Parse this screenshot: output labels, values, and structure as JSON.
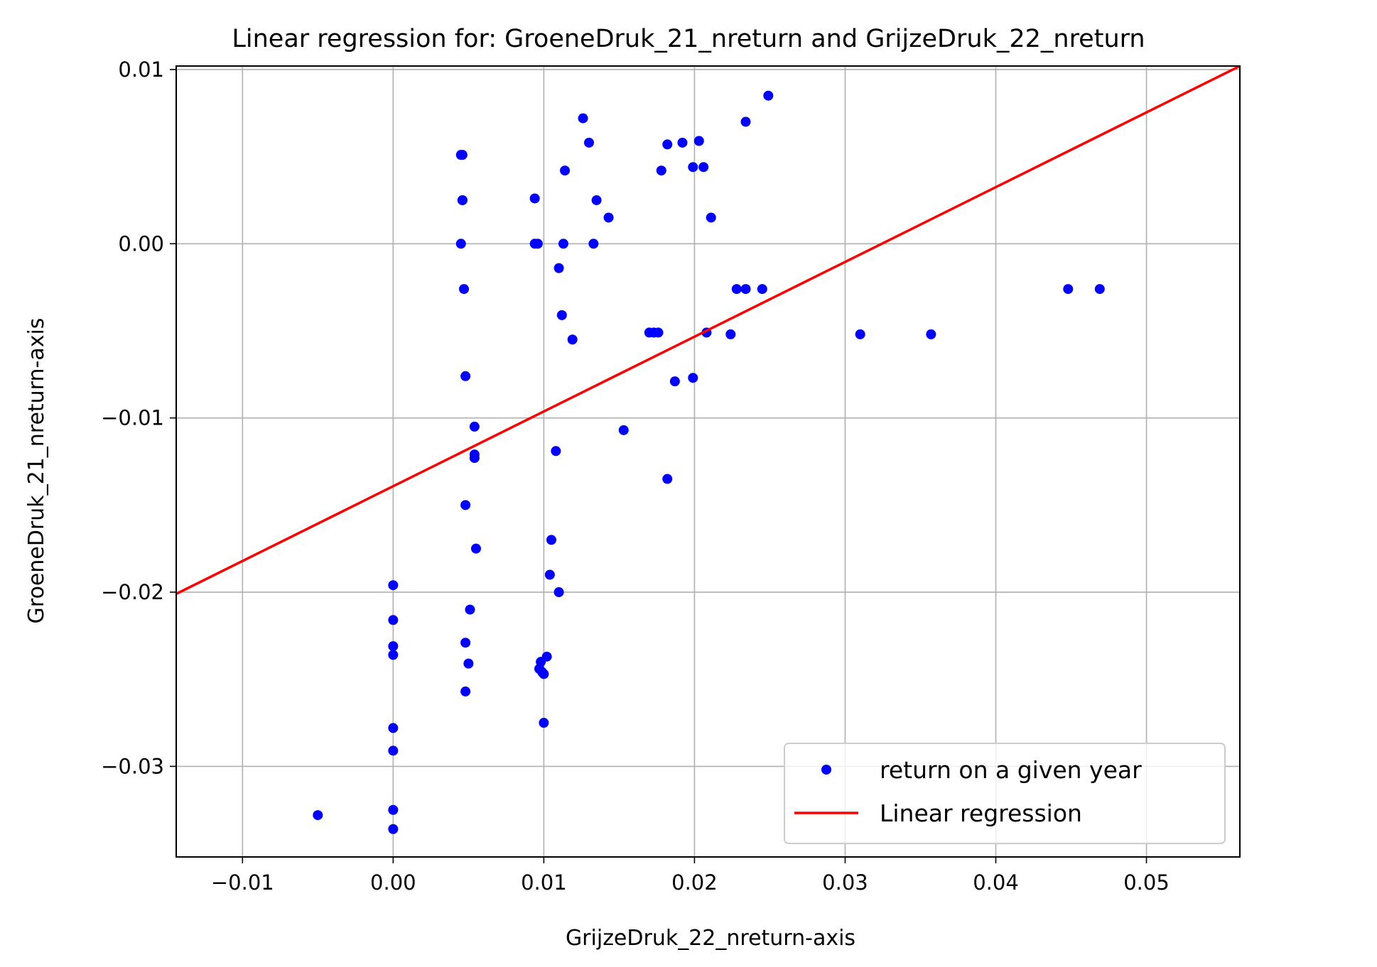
{
  "chart_data": {
    "type": "scatter",
    "title": "Linear regression for: GroeneDruk_21_nreturn and GrijzeDruk_22_nreturn",
    "xlabel": "GrijzeDruk_22_nreturn-axis",
    "ylabel": "GroeneDruk_21_nreturn-axis",
    "xlim": [
      -0.0144,
      0.0562
    ],
    "ylim": [
      -0.0352,
      0.0102
    ],
    "xticks": [
      -0.01,
      0.0,
      0.01,
      0.02,
      0.03,
      0.04,
      0.05
    ],
    "xtick_labels": [
      "−0.01",
      "0.00",
      "0.01",
      "0.02",
      "0.03",
      "0.04",
      "0.05"
    ],
    "yticks": [
      -0.03,
      -0.02,
      -0.01,
      0.0,
      0.01
    ],
    "ytick_labels": [
      "−0.03",
      "−0.02",
      "−0.01",
      "0.00",
      "0.01"
    ],
    "grid": true,
    "legend_position": "bottom-right",
    "series": [
      {
        "name": "return on a given year",
        "kind": "scatter",
        "color": "#0000ff",
        "points": [
          [
            -0.005,
            -0.0328
          ],
          [
            0.0,
            -0.0196
          ],
          [
            0.0,
            -0.0216
          ],
          [
            0.0,
            -0.0231
          ],
          [
            0.0,
            -0.0236
          ],
          [
            0.0,
            -0.0278
          ],
          [
            0.0,
            -0.0291
          ],
          [
            0.0,
            -0.0325
          ],
          [
            0.0,
            -0.0336
          ],
          [
            0.0045,
            0.0051
          ],
          [
            0.0046,
            0.0051
          ],
          [
            0.0046,
            0.0025
          ],
          [
            0.0046,
            0.0025
          ],
          [
            0.0045,
            0.0
          ],
          [
            0.0047,
            -0.0026
          ],
          [
            0.0048,
            -0.0076
          ],
          [
            0.0054,
            -0.0105
          ],
          [
            0.0054,
            -0.0121
          ],
          [
            0.0054,
            -0.0123
          ],
          [
            0.0048,
            -0.015
          ],
          [
            0.0055,
            -0.0175
          ],
          [
            0.0051,
            -0.021
          ],
          [
            0.0048,
            -0.0229
          ],
          [
            0.005,
            -0.0241
          ],
          [
            0.0048,
            -0.0257
          ],
          [
            0.0094,
            0.0026
          ],
          [
            0.0094,
            0.0
          ],
          [
            0.0096,
            0.0
          ],
          [
            0.0113,
            0.0
          ],
          [
            0.0133,
            0.0
          ],
          [
            0.011,
            -0.0014
          ],
          [
            0.0112,
            -0.0041
          ],
          [
            0.0119,
            -0.0055
          ],
          [
            0.0108,
            -0.0119
          ],
          [
            0.0105,
            -0.017
          ],
          [
            0.0104,
            -0.019
          ],
          [
            0.011,
            -0.02
          ],
          [
            0.0102,
            -0.0237
          ],
          [
            0.0098,
            -0.024
          ],
          [
            0.0097,
            -0.0244
          ],
          [
            0.0099,
            -0.0246
          ],
          [
            0.01,
            -0.0247
          ],
          [
            0.01,
            -0.0275
          ],
          [
            0.0126,
            0.0072
          ],
          [
            0.013,
            0.0058
          ],
          [
            0.0114,
            0.0042
          ],
          [
            0.0135,
            0.0025
          ],
          [
            0.0143,
            0.0015
          ],
          [
            0.0153,
            -0.0107
          ],
          [
            0.0249,
            0.0085
          ],
          [
            0.0234,
            0.007
          ],
          [
            0.0182,
            0.0057
          ],
          [
            0.0192,
            0.0058
          ],
          [
            0.0203,
            0.0059
          ],
          [
            0.0178,
            0.0042
          ],
          [
            0.0199,
            0.0044
          ],
          [
            0.0206,
            0.0044
          ],
          [
            0.0211,
            0.0015
          ],
          [
            0.017,
            -0.0051
          ],
          [
            0.0173,
            -0.0051
          ],
          [
            0.0176,
            -0.0051
          ],
          [
            0.0208,
            -0.0051
          ],
          [
            0.0224,
            -0.0052
          ],
          [
            0.0199,
            -0.0077
          ],
          [
            0.0187,
            -0.0079
          ],
          [
            0.0182,
            -0.0135
          ],
          [
            0.0228,
            -0.0026
          ],
          [
            0.0234,
            -0.0026
          ],
          [
            0.0245,
            -0.0026
          ],
          [
            0.031,
            -0.0052
          ],
          [
            0.0357,
            -0.0052
          ],
          [
            0.0448,
            -0.0026
          ],
          [
            0.0469,
            -0.0026
          ]
        ]
      },
      {
        "name": "Linear regression",
        "kind": "line",
        "color": "#ff0000",
        "x": [
          -0.0144,
          0.0562
        ],
        "y": [
          -0.0201,
          0.0102
        ]
      }
    ]
  }
}
